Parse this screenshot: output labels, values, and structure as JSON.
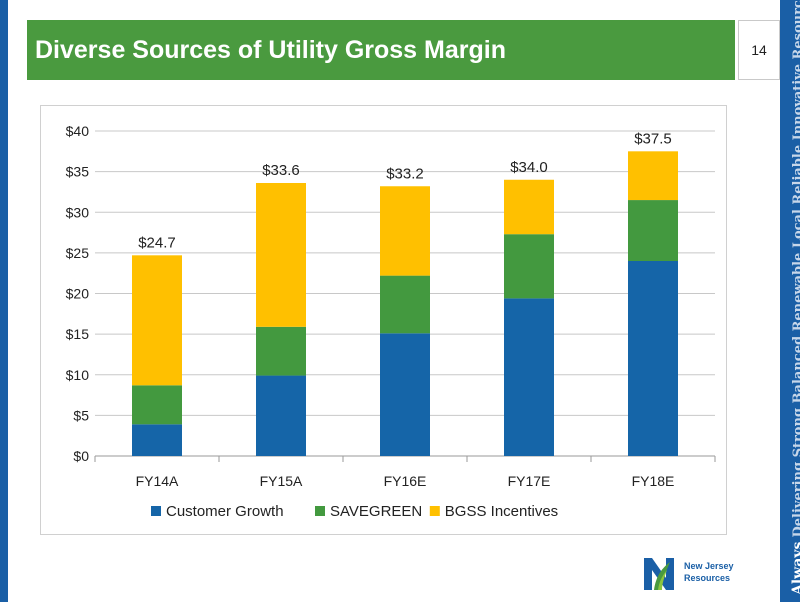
{
  "slide": {
    "title": "Diverse Sources of Utility Gross Margin",
    "page_number": "14",
    "tagline_lead": "Always",
    "tagline_rest": "Delivering Strong Balanced Renewable Local Reliable Innovative Resourceful Valued",
    "logo_text_line1": "New Jersey",
    "logo_text_line2": "Resources"
  },
  "colors": {
    "title_bar": "#4a9a3f",
    "side_strip": "#1a5fa6",
    "customer_growth": "#1565a8",
    "savegreen": "#43993f",
    "bgss": "#ffc000"
  },
  "chart_data": {
    "type": "bar",
    "stacked": true,
    "categories": [
      "FY14A",
      "FY15A",
      "FY16E",
      "FY17E",
      "FY18E"
    ],
    "series": [
      {
        "name": "Customer Growth",
        "values": [
          3.9,
          9.9,
          15.1,
          19.4,
          24.0
        ],
        "color": "#1565a8"
      },
      {
        "name": "SAVEGREEN",
        "values": [
          4.8,
          6.0,
          7.1,
          7.9,
          7.5
        ],
        "color": "#43993f"
      },
      {
        "name": "BGSS Incentives",
        "values": [
          16.0,
          17.7,
          11.0,
          6.7,
          6.0
        ],
        "color": "#ffc000"
      }
    ],
    "totals": [
      "$24.7",
      "$33.6",
      "$33.2",
      "$34.0",
      "$37.5"
    ],
    "total_values": [
      24.7,
      33.6,
      33.2,
      34.0,
      37.5
    ],
    "y_ticks": [
      "$0",
      "$5",
      "$10",
      "$15",
      "$20",
      "$25",
      "$30",
      "$35",
      "$40"
    ],
    "ylim": [
      0,
      40
    ],
    "grid": true,
    "legend_position": "bottom"
  }
}
